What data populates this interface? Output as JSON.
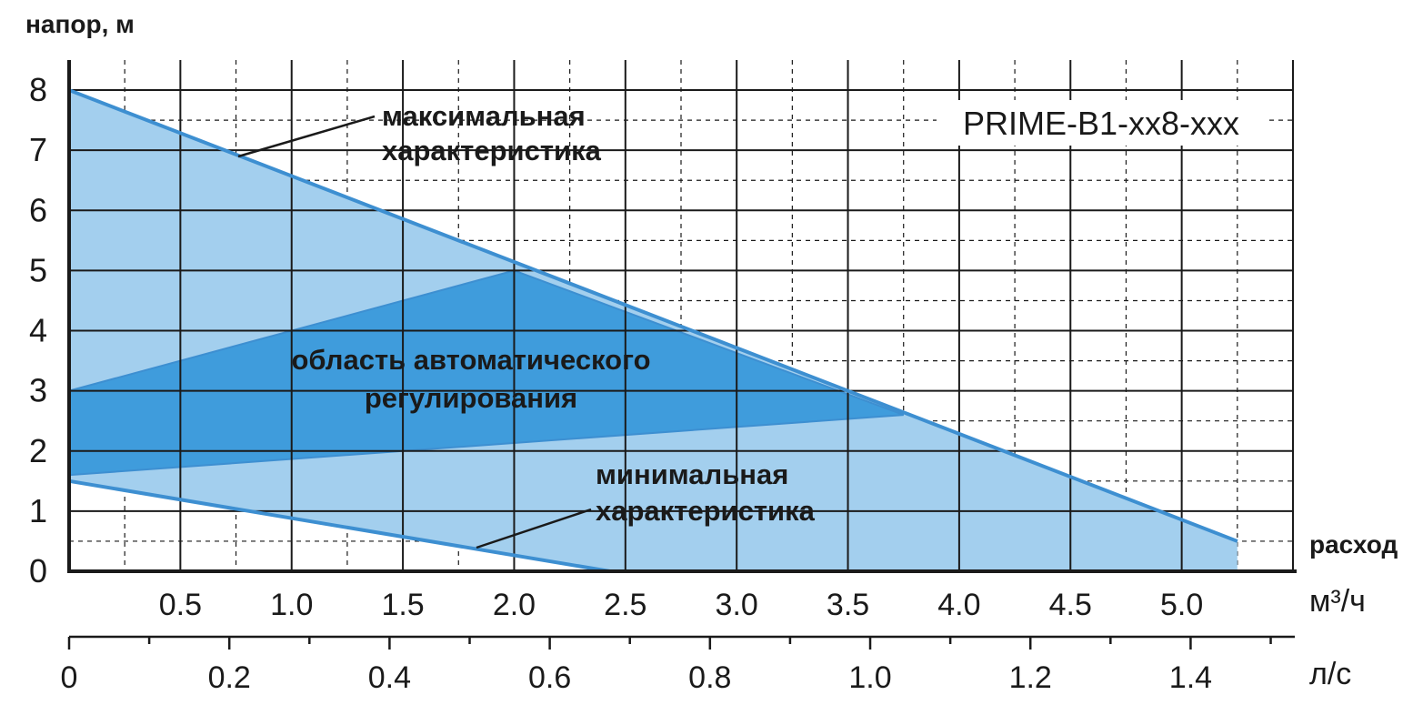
{
  "chart_data": {
    "type": "area",
    "title": "",
    "model_label": "PRIME-B1-xx8-xxx",
    "ylabel": "напор, м",
    "xlabel": "расход",
    "x_unit_primary": "м³/ч",
    "x_unit_secondary": "л/с",
    "xlim": [
      0,
      5.5
    ],
    "ylim": [
      0,
      8.5
    ],
    "y_ticks": [
      "0",
      "1",
      "2",
      "3",
      "4",
      "5",
      "6",
      "7",
      "8"
    ],
    "x_ticks_primary": [
      "0.5",
      "1.0",
      "1.5",
      "2.0",
      "2.5",
      "3.0",
      "3.5",
      "4.0",
      "4.5",
      "5.0"
    ],
    "x_ticks_secondary": [
      "0",
      "0.2",
      "0.4",
      "0.6",
      "0.8",
      "1.0",
      "1.2",
      "1.4"
    ],
    "grid": true,
    "colors": {
      "light_area": "#a3cfee",
      "auto_area": "#3f9cdc",
      "curve": "#3d8fd1",
      "grid": "#1a1a1a",
      "text": "#1a1a1a"
    },
    "series": [
      {
        "name": "максимальная характеристика",
        "points": [
          [
            0,
            8.0
          ],
          [
            5.25,
            0.5
          ]
        ]
      },
      {
        "name": "минимальная характеристика",
        "points": [
          [
            0,
            1.5
          ],
          [
            2.43,
            0.0
          ]
        ]
      },
      {
        "name": "область автоматического регулирования",
        "points": [
          [
            0,
            3.0
          ],
          [
            2.0,
            5.0
          ],
          [
            3.75,
            2.6
          ],
          [
            0,
            1.6
          ]
        ]
      }
    ],
    "annotations": {
      "max_line1": "максимальная",
      "max_line2": "характеристика",
      "min_line1": "минимальная",
      "min_line2": "характеристика",
      "area_line1": "область автоматического",
      "area_line2": "регулирования"
    }
  }
}
